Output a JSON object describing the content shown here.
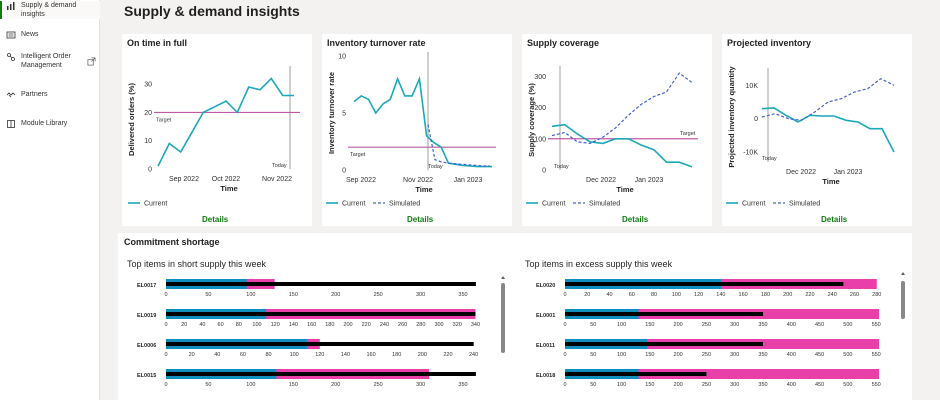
{
  "sidebar": {
    "items": [
      {
        "label": "Supply & demand insights",
        "icon": "bar-chart-icon",
        "active": true
      },
      {
        "label": "News",
        "icon": "news-icon"
      },
      {
        "label": "Intelligent Order Management",
        "icon": "order-management-icon",
        "external": true
      },
      {
        "label": "Partners",
        "icon": "partners-icon"
      },
      {
        "label": "Module Library",
        "icon": "library-icon"
      }
    ]
  },
  "page": {
    "title": "Supply & demand insights"
  },
  "colors": {
    "current": "#1ba8b8",
    "simulated": "#4060d0",
    "target": "#c05aa8",
    "blue_bar": "#0f8fbf",
    "pink_bar": "#e83fa8",
    "black_bar": "#000000",
    "link": "#107c10"
  },
  "cards": [
    {
      "title": "On time in full",
      "details": "Details"
    },
    {
      "title": "Inventory turnover rate",
      "details": "Details"
    },
    {
      "title": "Supply coverage",
      "details": "Details"
    },
    {
      "title": "Projected inventory",
      "details": "Details"
    }
  ],
  "common": {
    "xlabel": "Time",
    "legend_current": "Current",
    "legend_simulated": "Simulated",
    "target_label": "Target",
    "today_label": "Today"
  },
  "commitment": {
    "title": "Commitment shortage",
    "short_title": "Top items in short supply this week",
    "excess_title": "Top items in excess supply this week"
  },
  "chart_data": [
    {
      "type": "line",
      "title": "On time in full",
      "xlabel": "Time",
      "ylabel": "Delivered orders (%)",
      "ylim": [
        0,
        35
      ],
      "yticks": [
        0,
        10,
        20,
        30
      ],
      "xticks": [
        "Sep 2022",
        "Oct 2022",
        "Nov 2022"
      ],
      "target": 20,
      "series": [
        {
          "name": "Current",
          "values": [
            1,
            9,
            6,
            13,
            20,
            22,
            24,
            20,
            29,
            28,
            32,
            26,
            26
          ]
        }
      ]
    },
    {
      "type": "line",
      "title": "Inventory turnover rate",
      "xlabel": "Time",
      "ylabel": "Inventory turnover rate",
      "ylim": [
        0,
        10
      ],
      "yticks": [
        0,
        5,
        10
      ],
      "xticks": [
        "Sep 2022",
        "Nov 2022",
        "Jan 2023"
      ],
      "target": 2,
      "series": [
        {
          "name": "Current",
          "values": [
            6,
            6.5,
            6.2,
            5,
            5.8,
            6.2,
            8,
            6.5,
            6.5,
            8,
            3,
            2.4,
            2,
            0.6,
            0.5,
            0.4,
            0.35,
            0.3,
            0.3,
            0.3
          ]
        },
        {
          "name": "Simulated",
          "values": [
            4,
            0.9,
            0.7,
            0.6,
            0.55,
            0.5,
            0.45,
            0.4,
            0.35,
            0.35
          ]
        }
      ]
    },
    {
      "type": "line",
      "title": "Supply coverage",
      "xlabel": "Time",
      "ylabel": "Supply coverage (%)",
      "ylim": [
        0,
        320
      ],
      "yticks": [
        0,
        100,
        200,
        300
      ],
      "xticks": [
        "Dec 2022",
        "Jan 2023"
      ],
      "target": 100,
      "series": [
        {
          "name": "Current",
          "values": [
            140,
            145,
            115,
            90,
            85,
            100,
            100,
            80,
            65,
            25,
            25,
            10
          ]
        },
        {
          "name": "Simulated",
          "values": [
            110,
            120,
            90,
            85,
            105,
            135,
            175,
            210,
            235,
            250,
            310,
            280
          ]
        }
      ]
    },
    {
      "type": "line",
      "title": "Projected inventory",
      "xlabel": "Time",
      "ylabel": "Projected inventory quantity",
      "ylim": [
        -13000,
        14000
      ],
      "yticks": [
        "10K",
        "0",
        "-10K"
      ],
      "xticks": [
        "Dec 2022",
        "Jan 2023"
      ],
      "series": [
        {
          "name": "Current",
          "values": [
            3000,
            3200,
            1000,
            -1000,
            1000,
            800,
            800,
            -500,
            -1000,
            -3000,
            -3000,
            -10000
          ]
        },
        {
          "name": "Simulated",
          "values": [
            500,
            1500,
            0,
            -500,
            2000,
            5000,
            6000,
            8000,
            9000,
            12000,
            10000
          ]
        }
      ]
    },
    {
      "type": "bar",
      "title": "Top items in short supply this week",
      "items": [
        {
          "name": "EL0017",
          "blue": 95,
          "pink": 128,
          "black": 365,
          "max": 370,
          "ticks": [
            0,
            50,
            100,
            150,
            200,
            250,
            300,
            350
          ]
        },
        {
          "name": "EL0019",
          "blue": 110,
          "pink": 340,
          "black": 340,
          "max": 345,
          "ticks": [
            0,
            20,
            40,
            60,
            80,
            100,
            120,
            140,
            160,
            180,
            200,
            220,
            240,
            260,
            280,
            300,
            320,
            340
          ]
        },
        {
          "name": "EL0006",
          "blue": 110,
          "pink": 120,
          "black": 240,
          "max": 245,
          "ticks": [
            0,
            20,
            40,
            60,
            80,
            100,
            120,
            140,
            160,
            180,
            200,
            220,
            240
          ]
        },
        {
          "name": "EL0015",
          "blue": 130,
          "pink": 310,
          "black": 365,
          "max": 370,
          "ticks": [
            0,
            50,
            100,
            150,
            200,
            250,
            300,
            350
          ]
        }
      ]
    },
    {
      "type": "bar",
      "title": "Top items in excess supply this week",
      "items": [
        {
          "name": "EL0020",
          "blue": 140,
          "pink": 280,
          "black": 250,
          "max": 282,
          "ticks": [
            0,
            20,
            40,
            60,
            80,
            100,
            120,
            140,
            160,
            180,
            200,
            220,
            240,
            260,
            280
          ]
        },
        {
          "name": "EL0001",
          "blue": 130,
          "pink": 555,
          "black": 350,
          "max": 555,
          "ticks": [
            0,
            50,
            100,
            150,
            200,
            250,
            300,
            350,
            400,
            450,
            500,
            550
          ]
        },
        {
          "name": "EL0011",
          "blue": 145,
          "pink": 555,
          "black": 350,
          "max": 555,
          "ticks": [
            0,
            50,
            100,
            150,
            200,
            250,
            300,
            350,
            400,
            450,
            500,
            550
          ]
        },
        {
          "name": "EL0018",
          "blue": 130,
          "pink": 555,
          "black": 250,
          "max": 555,
          "ticks": [
            0,
            50,
            100,
            150,
            200,
            250,
            300,
            350,
            400,
            450,
            500,
            550
          ]
        }
      ]
    }
  ]
}
